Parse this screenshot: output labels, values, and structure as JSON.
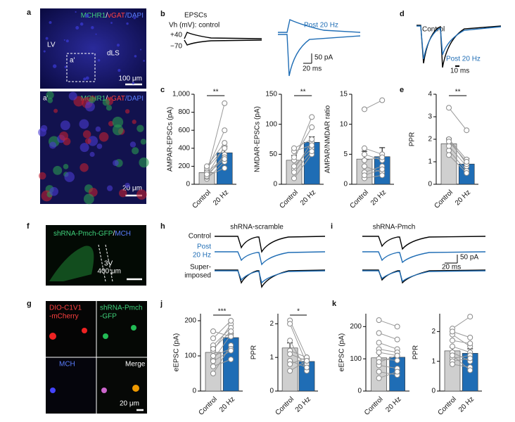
{
  "letters": [
    "a",
    "b",
    "c",
    "d",
    "e",
    "f",
    "g",
    "h",
    "i",
    "j",
    "k"
  ],
  "a": {
    "stain": [
      "MCHR1",
      "/",
      "vGAT",
      "/DAPI"
    ],
    "region_left": "LV",
    "inset": "a'",
    "region_right": "dLS",
    "scale": "100 μm"
  },
  "a_prime": {
    "label": "a'",
    "stain": [
      "MCHR1",
      "/",
      "vGAT",
      "/DAPI"
    ],
    "scale": "20 μm"
  },
  "b": {
    "title": "EPSCs",
    "holding": "Vh (mV): control",
    "plus": "+40",
    "minus": "−70",
    "post": "Post 20 Hz",
    "scale_y": "50 pA",
    "scale_x": "20 ms"
  },
  "d": {
    "control": "Control",
    "post": "Post 20 Hz",
    "scale_x": "10 ms"
  },
  "f": {
    "stain": [
      "shRNA-Pmch-GFP",
      "/",
      "MCH"
    ],
    "region": "3V",
    "scale": "400 μm"
  },
  "g": {
    "red": [
      "DIO-C1V1",
      "-mCherry"
    ],
    "green": [
      "shRNA-Pmch",
      "-GFP"
    ],
    "blue": "MCH",
    "merge": "Merge",
    "scale": "20 μm"
  },
  "h": {
    "title": "shRNA-scramble",
    "rows": [
      "Control",
      "Post",
      "20 Hz",
      "Super-",
      "imposed"
    ]
  },
  "i": {
    "title": "shRNA-Pmch",
    "scale_y": "50 pA",
    "scale_x": "20 ms"
  },
  "charts": [
    {
      "ylabel": "AMPAR-EPSCs (pA)",
      "categories": [
        "Control",
        "20 Hz"
      ],
      "colors": [
        "#cfcfcf",
        "#1f6db5"
      ],
      "ylim": [
        0,
        1000
      ],
      "yticks": [
        0,
        200,
        400,
        600,
        800,
        {
          "value": 1000,
          "label": "1,000"
        }
      ],
      "means": [
        130,
        350
      ],
      "errors": [
        25,
        70
      ],
      "pairs": [
        [
          60,
          250
        ],
        [
          80,
          330
        ],
        [
          100,
          420
        ],
        [
          120,
          900
        ],
        [
          150,
          600
        ],
        [
          180,
          400
        ],
        [
          90,
          180
        ],
        [
          130,
          300
        ],
        [
          200,
          460
        ],
        [
          110,
          280
        ]
      ],
      "significance": "**"
    },
    {
      "ylabel": "NMDAR-EPSCs (pA)",
      "categories": [
        "Control",
        "20 Hz"
      ],
      "colors": [
        "#cfcfcf",
        "#1f6db5"
      ],
      "ylim": [
        0,
        150
      ],
      "yticks": [
        0,
        50,
        100,
        150
      ],
      "means": [
        40,
        70
      ],
      "errors": [
        8,
        9
      ],
      "pairs": [
        [
          10,
          50
        ],
        [
          25,
          70
        ],
        [
          30,
          60
        ],
        [
          40,
          112
        ],
        [
          45,
          95
        ],
        [
          55,
          65
        ],
        [
          60,
          75
        ],
        [
          20,
          55
        ]
      ],
      "significance": "**"
    },
    {
      "ylabel": "AMPAR/NMDAR ratio",
      "categories": [
        "Control",
        "20 Hz"
      ],
      "colors": [
        "#cfcfcf",
        "#1f6db5"
      ],
      "ylim": [
        0,
        15
      ],
      "yticks": [
        0,
        5,
        10,
        15
      ],
      "means": [
        4.2,
        4.6
      ],
      "errors": [
        1.3,
        1.5
      ],
      "pairs": [
        [
          12.5,
          14
        ],
        [
          3,
          2
        ],
        [
          5,
          4
        ],
        [
          1,
          1.5
        ],
        [
          6,
          5
        ],
        [
          2,
          3
        ],
        [
          4,
          4.5
        ],
        [
          1.5,
          2.5
        ]
      ]
    },
    {
      "ylabel": "PPR",
      "categories": [
        "Control",
        "20 Hz"
      ],
      "colors": [
        "#cfcfcf",
        "#1f6db5"
      ],
      "ylim": [
        0,
        4
      ],
      "yticks": [
        0,
        1,
        2,
        3,
        4
      ],
      "means": [
        1.8,
        0.9
      ],
      "errors": [
        0.25,
        0.25
      ],
      "pairs": [
        [
          3.4,
          2.4
        ],
        [
          2,
          1.1
        ],
        [
          1.5,
          0.6
        ],
        [
          1.7,
          0.8
        ],
        [
          2,
          0.9
        ],
        [
          1.3,
          0.5
        ],
        [
          1.9,
          1
        ]
      ],
      "significance": "**"
    },
    {
      "ylabel": "eEPSC (pA)",
      "categories": [
        "Control",
        "20 Hz"
      ],
      "colors": [
        "#cfcfcf",
        "#1f6db5"
      ],
      "ylim": [
        0,
        220
      ],
      "yticks": [
        0,
        100,
        200
      ],
      "means": [
        110,
        152
      ],
      "errors": [
        14,
        12
      ],
      "pairs": [
        [
          50,
          130
        ],
        [
          70,
          90
        ],
        [
          90,
          160
        ],
        [
          100,
          120
        ],
        [
          115,
          190
        ],
        [
          130,
          180
        ],
        [
          150,
          200
        ],
        [
          120,
          170
        ],
        [
          170,
          155
        ],
        [
          85,
          115
        ]
      ],
      "significance": "***"
    },
    {
      "ylabel": "PPR",
      "categories": [
        "Control",
        "20 Hz"
      ],
      "colors": [
        "#cfcfcf",
        "#1f6db5"
      ],
      "ylim": [
        0,
        2.3
      ],
      "yticks": [
        0,
        1,
        2
      ],
      "means": [
        1.28,
        0.88
      ],
      "errors": [
        0.15,
        0.08
      ],
      "pairs": [
        [
          2.1,
          1
        ],
        [
          2,
          0.8
        ],
        [
          1.5,
          0.6
        ],
        [
          1.2,
          1
        ],
        [
          1.1,
          0.9
        ],
        [
          0.9,
          0.7
        ],
        [
          0.8,
          1
        ],
        [
          0.6,
          0.9
        ]
      ],
      "significance": "*"
    },
    {
      "ylabel": "eEPSC (pA)",
      "categories": [
        "Control",
        "20 Hz"
      ],
      "colors": [
        "#cfcfcf",
        "#1f6db5"
      ],
      "ylim": [
        0,
        240
      ],
      "yticks": [
        0,
        100,
        200
      ],
      "means": [
        103,
        105
      ],
      "errors": [
        16,
        16
      ],
      "pairs": [
        [
          220,
          200
        ],
        [
          180,
          160
        ],
        [
          150,
          130
        ],
        [
          130,
          120
        ],
        [
          100,
          95
        ],
        [
          80,
          70
        ],
        [
          60,
          50
        ],
        [
          40,
          60
        ],
        [
          120,
          110
        ],
        [
          90,
          110
        ]
      ]
    },
    {
      "ylabel": "PPR",
      "categories": [
        "Control",
        "20 Hz"
      ],
      "colors": [
        "#cfcfcf",
        "#1f6db5"
      ],
      "ylim": [
        0,
        2.6
      ],
      "yticks": [
        0,
        1,
        2
      ],
      "means": [
        1.35,
        1.27
      ],
      "errors": [
        0.12,
        0.15
      ],
      "pairs": [
        [
          2.1,
          2.5
        ],
        [
          1.9,
          1.5
        ],
        [
          1.7,
          1.6
        ],
        [
          1.5,
          1.3
        ],
        [
          1.3,
          1
        ],
        [
          1.1,
          1.2
        ],
        [
          1,
          1.1
        ],
        [
          0.9,
          0.8
        ],
        [
          2,
          1.8
        ],
        [
          1.2,
          0.7
        ]
      ]
    }
  ]
}
